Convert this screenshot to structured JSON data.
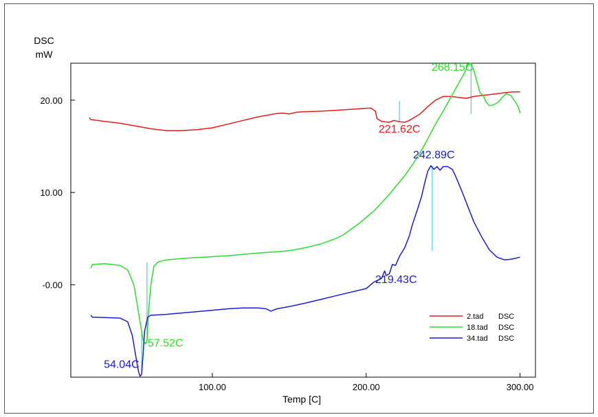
{
  "chart_data": {
    "type": "line",
    "ylabel": "DSC",
    "yunit": "mW",
    "xlabel": "Temp  [C]",
    "xlim": [
      8,
      310
    ],
    "ylim": [
      -10,
      24
    ],
    "xticks": [
      {
        "value": 100,
        "label": "100.00"
      },
      {
        "value": 200,
        "label": "200.00"
      },
      {
        "value": 300,
        "label": "300.00"
      }
    ],
    "yticks": [
      {
        "value": 20,
        "label": "20.00"
      },
      {
        "value": 10,
        "label": "10.00"
      },
      {
        "value": 0,
        "label": "-0.00"
      }
    ],
    "grid": false,
    "legend_position": "bottom-right",
    "series": [
      {
        "name": "2.tad",
        "legend_suffix": "DSC",
        "color": "#e8191b",
        "points": [
          [
            20,
            18.1
          ],
          [
            21,
            17.9
          ],
          [
            30,
            17.7
          ],
          [
            40,
            17.5
          ],
          [
            50,
            17.2
          ],
          [
            60,
            16.9
          ],
          [
            70,
            16.7
          ],
          [
            80,
            16.7
          ],
          [
            90,
            16.8
          ],
          [
            100,
            17.0
          ],
          [
            110,
            17.4
          ],
          [
            120,
            17.8
          ],
          [
            130,
            18.2
          ],
          [
            140,
            18.5
          ],
          [
            145,
            18.6
          ],
          [
            150,
            18.5
          ],
          [
            155,
            18.7
          ],
          [
            160,
            18.75
          ],
          [
            170,
            18.8
          ],
          [
            180,
            18.9
          ],
          [
            190,
            19.0
          ],
          [
            198,
            19.1
          ],
          [
            203,
            19.15
          ],
          [
            206,
            18.8
          ],
          [
            207,
            18.0
          ],
          [
            210,
            17.7
          ],
          [
            215,
            17.6
          ],
          [
            218,
            17.8
          ],
          [
            222,
            17.65
          ],
          [
            225,
            17.6
          ],
          [
            228,
            17.8
          ],
          [
            232,
            18.2
          ],
          [
            235,
            18.5
          ],
          [
            240,
            19.3
          ],
          [
            245,
            20.0
          ],
          [
            250,
            20.4
          ],
          [
            255,
            20.4
          ],
          [
            260,
            20.3
          ],
          [
            265,
            20.2
          ],
          [
            270,
            20.4
          ],
          [
            275,
            20.5
          ],
          [
            280,
            20.6
          ],
          [
            285,
            20.7
          ],
          [
            290,
            20.8
          ],
          [
            295,
            20.9
          ],
          [
            300,
            20.9
          ]
        ]
      },
      {
        "name": "18.tad",
        "legend_suffix": "DSC",
        "color": "#28e028",
        "points": [
          [
            21,
            1.8
          ],
          [
            22,
            2.2
          ],
          [
            30,
            2.3
          ],
          [
            40,
            2.1
          ],
          [
            45,
            1.6
          ],
          [
            49,
            0
          ],
          [
            51,
            -2
          ],
          [
            53,
            -4
          ],
          [
            55,
            -6
          ],
          [
            56.5,
            -6.4
          ],
          [
            57.5,
            -6.1
          ],
          [
            58.5,
            -3
          ],
          [
            60,
            0
          ],
          [
            62,
            2.0
          ],
          [
            65,
            2.5
          ],
          [
            70,
            2.7
          ],
          [
            80,
            2.85
          ],
          [
            90,
            2.95
          ],
          [
            100,
            3.05
          ],
          [
            110,
            3.15
          ],
          [
            120,
            3.3
          ],
          [
            130,
            3.45
          ],
          [
            140,
            3.55
          ],
          [
            150,
            3.7
          ],
          [
            160,
            4.0
          ],
          [
            170,
            4.4
          ],
          [
            180,
            5.0
          ],
          [
            185,
            5.4
          ],
          [
            190,
            6.0
          ],
          [
            195,
            6.6
          ],
          [
            200,
            7.3
          ],
          [
            205,
            8.0
          ],
          [
            210,
            8.9
          ],
          [
            215,
            9.8
          ],
          [
            220,
            10.8
          ],
          [
            225,
            11.8
          ],
          [
            230,
            13.0
          ],
          [
            235,
            14.3
          ],
          [
            240,
            15.8
          ],
          [
            245,
            17.4
          ],
          [
            250,
            18.8
          ],
          [
            255,
            20.3
          ],
          [
            260,
            21.8
          ],
          [
            264,
            23.0
          ],
          [
            266,
            23.8
          ],
          [
            268,
            24.0
          ],
          [
            270,
            23.2
          ],
          [
            272,
            22.0
          ],
          [
            274,
            20.8
          ],
          [
            276,
            20.5
          ],
          [
            278,
            19.8
          ],
          [
            280,
            19.4
          ],
          [
            283,
            19.5
          ],
          [
            286,
            19.8
          ],
          [
            289,
            20.4
          ],
          [
            291,
            20.7
          ],
          [
            294,
            20.5
          ],
          [
            297,
            19.8
          ],
          [
            299,
            19.2
          ],
          [
            300,
            18.6
          ]
        ]
      },
      {
        "name": "34.tad",
        "legend_suffix": "DSC",
        "color": "#1a1adc",
        "points": [
          [
            21,
            -3.3
          ],
          [
            22,
            -3.5
          ],
          [
            30,
            -3.55
          ],
          [
            40,
            -3.6
          ],
          [
            45,
            -4.0
          ],
          [
            48,
            -5.5
          ],
          [
            50,
            -7.5
          ],
          [
            52,
            -9.4
          ],
          [
            53,
            -9.9
          ],
          [
            54,
            -9.7
          ],
          [
            55,
            -7.5
          ],
          [
            56,
            -5.0
          ],
          [
            58,
            -3.5
          ],
          [
            60,
            -3.3
          ],
          [
            70,
            -3.2
          ],
          [
            80,
            -3.05
          ],
          [
            90,
            -2.9
          ],
          [
            100,
            -2.75
          ],
          [
            110,
            -2.6
          ],
          [
            120,
            -2.5
          ],
          [
            130,
            -2.5
          ],
          [
            135,
            -2.6
          ],
          [
            138,
            -2.85
          ],
          [
            142,
            -2.6
          ],
          [
            150,
            -2.35
          ],
          [
            160,
            -2.0
          ],
          [
            170,
            -1.6
          ],
          [
            180,
            -1.2
          ],
          [
            190,
            -0.8
          ],
          [
            200,
            -0.4
          ],
          [
            205,
            0.3
          ],
          [
            210,
            0.7
          ],
          [
            212,
            1.5
          ],
          [
            213,
            1.0
          ],
          [
            215,
            1.2
          ],
          [
            217,
            2.2
          ],
          [
            219,
            2.1
          ],
          [
            222,
            3.2
          ],
          [
            225,
            4.0
          ],
          [
            228,
            5.3
          ],
          [
            230,
            6.5
          ],
          [
            233,
            8.0
          ],
          [
            236,
            9.6
          ],
          [
            238,
            11.0
          ],
          [
            240,
            12.3
          ],
          [
            242,
            12.9
          ],
          [
            244,
            12.5
          ],
          [
            246,
            12.8
          ],
          [
            248,
            12.4
          ],
          [
            250,
            12.8
          ],
          [
            253,
            12.8
          ],
          [
            256,
            12.5
          ],
          [
            258,
            11.8
          ],
          [
            260,
            11.0
          ],
          [
            263,
            9.8
          ],
          [
            266,
            8.5
          ],
          [
            270,
            6.8
          ],
          [
            275,
            5.2
          ],
          [
            280,
            3.8
          ],
          [
            285,
            3.0
          ],
          [
            290,
            2.7
          ],
          [
            295,
            2.8
          ],
          [
            300,
            3.0
          ]
        ]
      }
    ],
    "markers": [
      {
        "x": 221.62,
        "y_from": 17.6,
        "y_to": 19.9
      },
      {
        "x": 268.15,
        "y_from": 18.5,
        "y_to": 24.0
      },
      {
        "x": 242.89,
        "y_from": 3.7,
        "y_to": 12.9
      },
      {
        "x": 57.52,
        "y_from": -6.3,
        "y_to": 2.4
      },
      {
        "x": 54.04,
        "y_from": -9.6,
        "y_to": -5.0
      }
    ],
    "annotations": [
      {
        "text": "221.62C",
        "x": 221.62,
        "y": 16.5,
        "color": "#e8191b",
        "anchor": "middle"
      },
      {
        "text": "268.15C",
        "x": 256,
        "y": 23.2,
        "color": "#28e028",
        "anchor": "middle"
      },
      {
        "text": "242.89C",
        "x": 244,
        "y": 13.7,
        "color": "#1a1adc",
        "anchor": "middle"
      },
      {
        "text": "219.43C",
        "x": 219.43,
        "y": 0.2,
        "color": "#1a1adc",
        "anchor": "middle"
      },
      {
        "text": "57.52C",
        "x": 58,
        "y": -6.7,
        "color": "#28e028",
        "anchor": "start"
      },
      {
        "text": "54.04C",
        "x": 41,
        "y": -9.0,
        "color": "#1a1adc",
        "anchor": "middle"
      }
    ]
  }
}
